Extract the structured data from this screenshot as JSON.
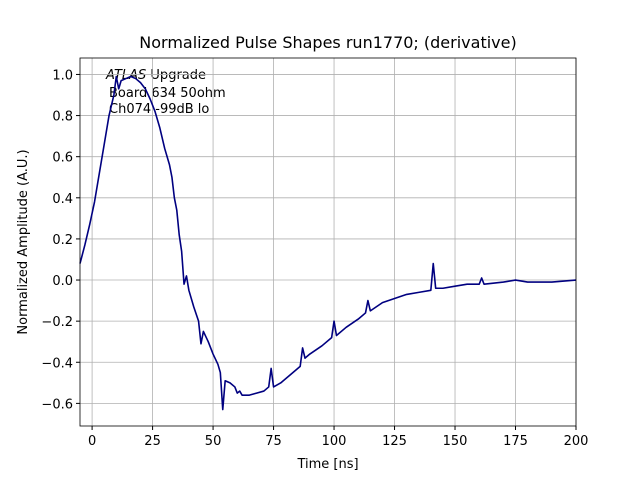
{
  "chart_data": {
    "type": "line",
    "title": "Normalized Pulse Shapes run1770; (derivative)",
    "xlabel": "Time [ns]",
    "ylabel": "Normalized Amplitude (A.U.)",
    "annotation": {
      "italic": "ATLAS",
      "rest": "Upgrade",
      "lines": [
        "Board 634 50ohm",
        "Ch074 -99dB lo"
      ]
    },
    "xlim": [
      -5,
      200
    ],
    "ylim": [
      -0.71,
      1.08
    ],
    "xticks": [
      0,
      25,
      50,
      75,
      100,
      125,
      150,
      175,
      200
    ],
    "yticks": [
      {
        "value": -0.6,
        "label": "−0.6"
      },
      {
        "value": -0.4,
        "label": "−0.4"
      },
      {
        "value": -0.2,
        "label": "−0.2"
      },
      {
        "value": 0,
        "label": "0.0"
      },
      0.2,
      0.4,
      0.6,
      0.8,
      {
        "value": 1,
        "label": "1.0"
      }
    ],
    "grid": true,
    "series": [
      {
        "color": "#000080",
        "x": [
          -5,
          -3,
          -1,
          1,
          3,
          5,
          7,
          9,
          10,
          11,
          12,
          14,
          16,
          18,
          20,
          22,
          24,
          26,
          28,
          30,
          32,
          33,
          34,
          35,
          36,
          37,
          38,
          39,
          40,
          42,
          44,
          45,
          46,
          48,
          50,
          52,
          53,
          54,
          55,
          57,
          59,
          60,
          61,
          62,
          65,
          68,
          71,
          73,
          74,
          75,
          78,
          82,
          86,
          87,
          88,
          90,
          95,
          99,
          100,
          101,
          105,
          110,
          113,
          114,
          115,
          120,
          125,
          130,
          135,
          140,
          141,
          142,
          145,
          150,
          155,
          160,
          161,
          162,
          170,
          175,
          180,
          190,
          200
        ],
        "values": [
          0.08,
          0.17,
          0.27,
          0.38,
          0.52,
          0.66,
          0.8,
          0.9,
          0.99,
          0.93,
          0.97,
          0.98,
          0.99,
          0.98,
          0.96,
          0.93,
          0.88,
          0.82,
          0.74,
          0.64,
          0.56,
          0.5,
          0.4,
          0.34,
          0.22,
          0.14,
          -0.02,
          0.02,
          -0.05,
          -0.13,
          -0.2,
          -0.31,
          -0.25,
          -0.3,
          -0.36,
          -0.41,
          -0.45,
          -0.63,
          -0.49,
          -0.5,
          -0.52,
          -0.55,
          -0.54,
          -0.56,
          -0.56,
          -0.55,
          -0.54,
          -0.52,
          -0.43,
          -0.52,
          -0.5,
          -0.46,
          -0.42,
          -0.33,
          -0.38,
          -0.36,
          -0.32,
          -0.28,
          -0.2,
          -0.27,
          -0.23,
          -0.19,
          -0.16,
          -0.1,
          -0.15,
          -0.11,
          -0.09,
          -0.07,
          -0.06,
          -0.05,
          0.08,
          -0.04,
          -0.04,
          -0.03,
          -0.02,
          -0.02,
          0.01,
          -0.02,
          -0.01,
          0,
          -0.01,
          -0.01,
          0
        ]
      }
    ]
  }
}
